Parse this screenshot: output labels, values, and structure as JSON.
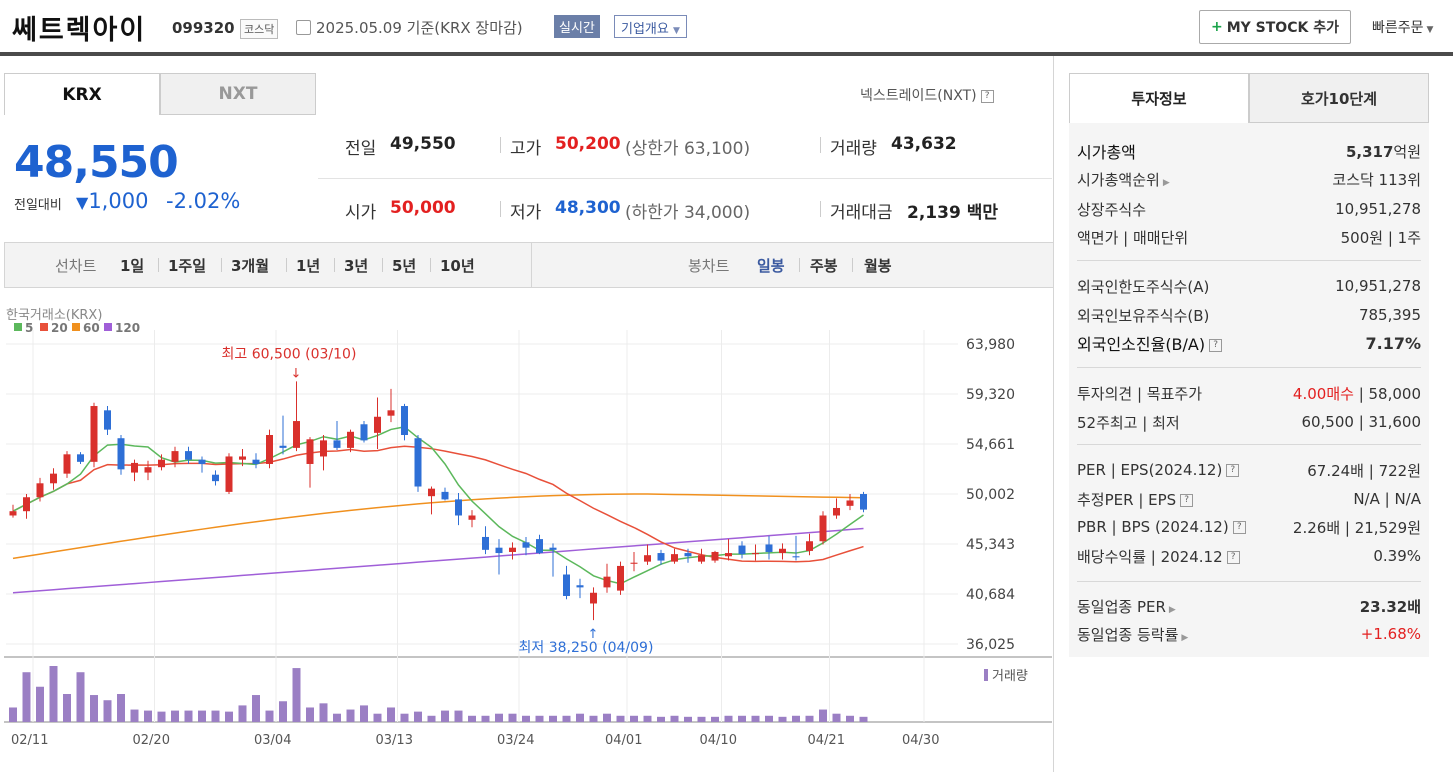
{
  "header": {
    "stock_name": "쎄트렉아이",
    "code": "099320",
    "market": "코스닥",
    "date": "2025.05.09 기준(KRX 장마감)",
    "realtime": "실시간",
    "corp_info": "기업개요",
    "my_stock": "MY STOCK 추가",
    "quick_order": "빠른주문"
  },
  "tabs": {
    "krx": "KRX",
    "nxt": "NXT",
    "nxt_link": "넥스트레이드(NXT)"
  },
  "quote": {
    "price": "48,550",
    "change_label": "전일대비",
    "change": "1,000",
    "change_pct": "-2.02%",
    "prev_label": "전일",
    "prev": "49,550",
    "high_label": "고가",
    "high": "50,200",
    "upper_limit": "(상한가 63,100)",
    "volume_label": "거래량",
    "volume": "43,632",
    "open_label": "시가",
    "open": "50,000",
    "low_label": "저가",
    "low": "48,300",
    "lower_limit": "(하한가 34,000)",
    "amount_label": "거래대금",
    "amount": "2,139",
    "amount_unit": "백만"
  },
  "periods": {
    "line_label": "선차트",
    "line_items": [
      "1일",
      "1주일",
      "3개월",
      "1년",
      "3년",
      "5년",
      "10년"
    ],
    "candle_label": "봉차트",
    "candle_items": [
      "일봉",
      "주봉",
      "월봉"
    ]
  },
  "chart_data": {
    "type": "candlestick",
    "title": "한국거래소(KRX)",
    "legend": [
      "5",
      "20",
      "60",
      "120"
    ],
    "colors": {
      "ma5": "#5cb85c",
      "ma20": "#e8503a",
      "ma60": "#f0901e",
      "ma120": "#a05fd8",
      "up": "#d9302c",
      "down": "#2e6fd6",
      "volume": "#9b7fc4"
    },
    "y_ticks": [
      "63,980",
      "59,320",
      "54,661",
      "50,002",
      "45,343",
      "40,684",
      "36,025"
    ],
    "ylim": [
      36025,
      63980
    ],
    "x_ticks": [
      "02/11",
      "02/20",
      "03/04",
      "03/13",
      "03/24",
      "04/01",
      "04/10",
      "04/21",
      "04/30"
    ],
    "annotations": {
      "high": "최고 60,500 (03/10)",
      "low": "최저 38,250 (04/09)"
    },
    "volume_label": "거래량",
    "candles": [
      [
        48000,
        49000,
        47800,
        48400
      ],
      [
        48400,
        50000,
        47700,
        49700
      ],
      [
        49700,
        51500,
        49300,
        51000
      ],
      [
        51000,
        52400,
        50400,
        51900
      ],
      [
        51900,
        54000,
        51500,
        53700
      ],
      [
        53700,
        53900,
        52800,
        53000
      ],
      [
        53000,
        58500,
        52500,
        58200
      ],
      [
        57800,
        58200,
        55500,
        56000
      ],
      [
        55200,
        55500,
        51800,
        52300
      ],
      [
        52000,
        53200,
        51200,
        52900
      ],
      [
        52000,
        53100,
        51300,
        52500
      ],
      [
        52500,
        53700,
        52200,
        53200
      ],
      [
        53000,
        54400,
        52500,
        54000
      ],
      [
        54000,
        54400,
        52800,
        53200
      ],
      [
        53200,
        53500,
        52000,
        52800
      ],
      [
        51800,
        52200,
        50800,
        51200
      ],
      [
        50200,
        53800,
        50000,
        53500
      ],
      [
        53200,
        54200,
        52600,
        53500
      ],
      [
        53200,
        53800,
        52400,
        52800
      ],
      [
        52800,
        56000,
        52400,
        55500
      ],
      [
        54500,
        57300,
        53700,
        54300
      ],
      [
        54300,
        60500,
        54000,
        56800
      ],
      [
        52800,
        55300,
        50600,
        55100
      ],
      [
        53500,
        55500,
        52200,
        55000
      ],
      [
        55000,
        56800,
        54100,
        54300
      ],
      [
        54300,
        56000,
        53900,
        55800
      ],
      [
        56500,
        56800,
        54800,
        55000
      ],
      [
        55700,
        59000,
        54200,
        57200
      ],
      [
        57300,
        59800,
        56700,
        57800
      ],
      [
        58200,
        58400,
        55000,
        55500
      ],
      [
        55200,
        55500,
        50200,
        50700
      ],
      [
        49800,
        50700,
        48100,
        50500
      ],
      [
        50200,
        50600,
        49400,
        49500
      ],
      [
        49500,
        50100,
        47100,
        48000
      ],
      [
        47600,
        48500,
        46900,
        48000
      ],
      [
        46000,
        47000,
        44400,
        44800
      ],
      [
        45000,
        45800,
        42500,
        44500
      ],
      [
        44600,
        45500,
        43900,
        45000
      ],
      [
        45500,
        46000,
        44300,
        45000
      ],
      [
        45800,
        46200,
        44400,
        44500
      ],
      [
        45000,
        45400,
        42300,
        44800
      ],
      [
        42500,
        43300,
        40200,
        40500
      ],
      [
        41500,
        42100,
        40300,
        41300
      ],
      [
        39800,
        41300,
        38250,
        40800
      ],
      [
        41300,
        43500,
        40800,
        42300
      ],
      [
        41000,
        43700,
        40600,
        43300
      ],
      [
        43500,
        44600,
        42800,
        43600
      ],
      [
        43700,
        45300,
        43400,
        44300
      ],
      [
        44500,
        44800,
        43400,
        43800
      ],
      [
        43700,
        44900,
        43500,
        44400
      ],
      [
        44500,
        44900,
        43600,
        44200
      ],
      [
        43700,
        44900,
        43500,
        44300
      ],
      [
        43800,
        44700,
        43600,
        44600
      ],
      [
        44200,
        45800,
        43800,
        44500
      ],
      [
        45200,
        45600,
        44000,
        44400
      ],
      [
        44400,
        45300,
        43800,
        44500
      ],
      [
        45300,
        46100,
        43900,
        44600
      ],
      [
        44500,
        45400,
        43900,
        44900
      ],
      [
        44200,
        46100,
        43800,
        44100
      ],
      [
        44700,
        46300,
        44300,
        45600
      ],
      [
        45600,
        48400,
        45300,
        48000
      ],
      [
        48000,
        49600,
        47700,
        48700
      ],
      [
        48900,
        50000,
        48500,
        49400
      ],
      [
        50000,
        50200,
        48300,
        48550
      ]
    ],
    "volumes": [
      14,
      48,
      34,
      54,
      27,
      48,
      26,
      21,
      27,
      12,
      11,
      10,
      11,
      11,
      11,
      11,
      10,
      16,
      26,
      11,
      20,
      52,
      14,
      18,
      8,
      12,
      16,
      8,
      14,
      8,
      10,
      6,
      11,
      11,
      6,
      6,
      8,
      8,
      6,
      6,
      6,
      6,
      8,
      6,
      8,
      6,
      6,
      6,
      5,
      6,
      5,
      5,
      5,
      6,
      6,
      6,
      6,
      5,
      6,
      6,
      12,
      8,
      6,
      5
    ]
  },
  "sidebar": {
    "tab_invest": "투자정보",
    "tab_hoga": "호가10단계",
    "rows": {
      "cap_l": "시가총액",
      "cap_r": "5,317",
      "cap_unit": "억원",
      "rank_l": "시가총액순위",
      "rank_r": "코스닥 113위",
      "shares_l": "상장주식수",
      "shares_r": "10,951,278",
      "face_l": "액면가 | 매매단위",
      "face_r": "500원 | 1주",
      "frn_limit_l": "외국인한도주식수(A)",
      "frn_limit_r": "10,951,278",
      "frn_hold_l": "외국인보유주식수(B)",
      "frn_hold_r": "785,395",
      "frn_ratio_l": "외국인소진율(B/A)",
      "frn_ratio_r": "7.17%",
      "opinion_l": "투자의견 | 목표주가",
      "opinion_r1": "4.00매수",
      "opinion_r2": " | 58,000",
      "w52_l": "52주최고 | 최저",
      "w52_r": "60,500 | 31,600",
      "per_l": "PER | EPS(2024.12)",
      "per_r": "67.24배 | 722원",
      "eper_l": "추정PER | EPS",
      "eper_r": "N/A | N/A",
      "pbr_l": "PBR | BPS (2024.12)",
      "pbr_r": "2.26배 | 21,529원",
      "div_l": "배당수익률 | 2024.12",
      "div_r": "0.39%",
      "sector_per_l": "동일업종 PER",
      "sector_per_r": "23.32배",
      "sector_chg_l": "동일업종 등락률",
      "sector_chg_r": "+1.68%"
    }
  }
}
